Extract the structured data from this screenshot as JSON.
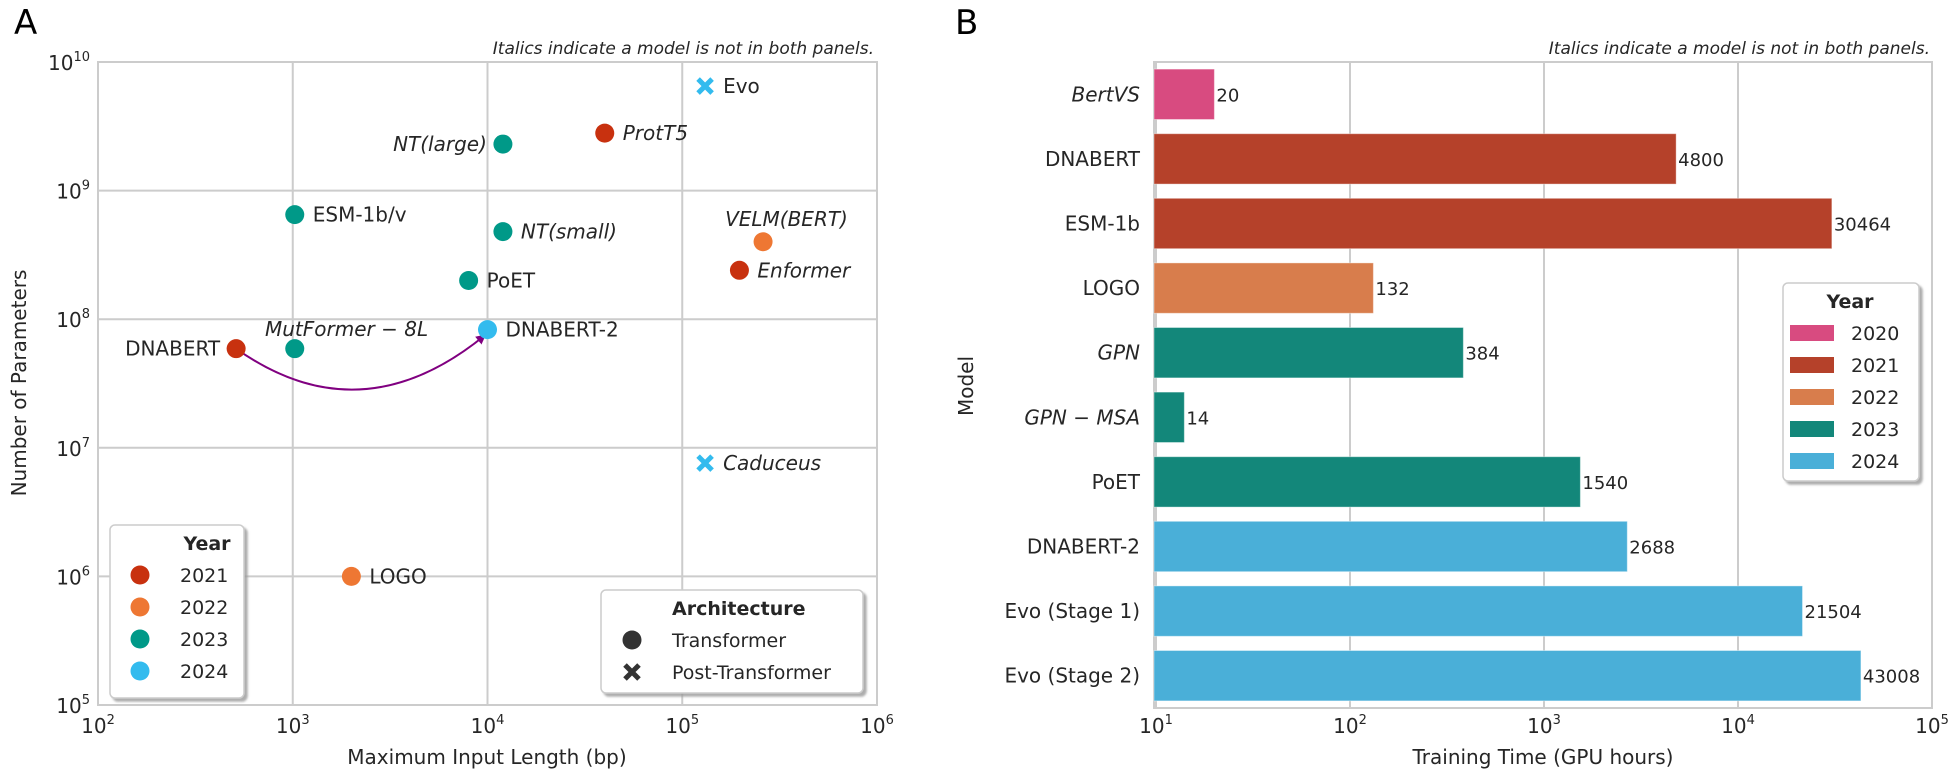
{
  "chart_data": [
    {
      "panel": "A",
      "type": "scatter",
      "note": "Italics indicate a model is not in both panels.",
      "xlabel": "Maximum Input Length (bp)",
      "ylabel": "Number of Parameters",
      "xscale": "log",
      "yscale": "log",
      "xlim": [
        100,
        1000000
      ],
      "ylim": [
        100000,
        10000000000
      ],
      "xticks": [
        {
          "base": "10",
          "exp": "2"
        },
        {
          "base": "10",
          "exp": "3"
        },
        {
          "base": "10",
          "exp": "4"
        },
        {
          "base": "10",
          "exp": "5"
        },
        {
          "base": "10",
          "exp": "6"
        }
      ],
      "yticks": [
        {
          "base": "10",
          "exp": "5"
        },
        {
          "base": "10",
          "exp": "6"
        },
        {
          "base": "10",
          "exp": "7"
        },
        {
          "base": "10",
          "exp": "8"
        },
        {
          "base": "10",
          "exp": "9"
        },
        {
          "base": "10",
          "exp": "10"
        }
      ],
      "grid": true,
      "points": [
        {
          "label": "Evo",
          "x": 131000,
          "y": 6500000000,
          "year": "2024",
          "architecture": "Post-Transformer",
          "italic": false,
          "label_pos": "right"
        },
        {
          "label": "ProtT5",
          "x": 40000,
          "y": 2800000000,
          "year": "2021",
          "architecture": "Transformer",
          "italic": true,
          "label_pos": "right"
        },
        {
          "label": "NT(large)",
          "x": 12000,
          "y": 2300000000,
          "year": "2023",
          "architecture": "Transformer",
          "italic": true,
          "label_pos": "left"
        },
        {
          "label": "ESM-1b/v",
          "x": 1024,
          "y": 650000000,
          "year": "2023",
          "architecture": "Transformer",
          "italic": false,
          "label_pos": "right"
        },
        {
          "label": "NT(small)",
          "x": 12000,
          "y": 480000000,
          "year": "2023",
          "architecture": "Transformer",
          "italic": true,
          "label_pos": "right"
        },
        {
          "label": "VELM(BERT)",
          "x": 260000,
          "y": 400000000,
          "year": "2022",
          "architecture": "Transformer",
          "italic": true,
          "label_pos": "above"
        },
        {
          "label": "Enformer",
          "x": 196608,
          "y": 240000000,
          "year": "2021",
          "architecture": "Transformer",
          "italic": true,
          "label_pos": "right"
        },
        {
          "label": "PoET",
          "x": 8000,
          "y": 200000000,
          "year": "2023",
          "architecture": "Transformer",
          "italic": false,
          "label_pos": "right"
        },
        {
          "label": "DNABERT-2",
          "x": 10000,
          "y": 83000000,
          "year": "2024",
          "architecture": "Transformer",
          "italic": false,
          "label_pos": "right"
        },
        {
          "label": "DNABERT",
          "x": 512,
          "y": 59000000,
          "year": "2021",
          "architecture": "Transformer",
          "italic": false,
          "label_pos": "left"
        },
        {
          "label": "MutFormer − 8L",
          "x": 1024,
          "y": 59000000,
          "year": "2023",
          "architecture": "Transformer",
          "italic": true,
          "label_pos": "above-right"
        },
        {
          "label": "Caduceus",
          "x": 131000,
          "y": 7600000,
          "year": "2024",
          "architecture": "Post-Transformer",
          "italic": true,
          "label_pos": "right"
        },
        {
          "label": "LOGO",
          "x": 2000,
          "y": 1000000,
          "year": "2022",
          "architecture": "Transformer",
          "italic": false,
          "label_pos": "right"
        }
      ],
      "annotations": [
        {
          "type": "curved-arrow",
          "from": "DNABERT",
          "to": "DNABERT-2",
          "color": "#800080"
        }
      ],
      "legends": [
        {
          "title": "Year",
          "placement": "lower-left",
          "items": [
            {
              "label": "2021",
              "color": "#c8310f"
            },
            {
              "label": "2022",
              "color": "#ee7733"
            },
            {
              "label": "2023",
              "color": "#009988"
            },
            {
              "label": "2024",
              "color": "#33bbee"
            }
          ]
        },
        {
          "title": "Architecture",
          "placement": "lower-right",
          "items": [
            {
              "label": "Transformer",
              "marker": "circle",
              "color": "#333333"
            },
            {
              "label": "Post-Transformer",
              "marker": "x",
              "color": "#333333"
            }
          ]
        }
      ]
    },
    {
      "panel": "B",
      "type": "bar",
      "orientation": "horizontal",
      "note": "Italics indicate a model is not in both panels.",
      "xlabel": "Training Time (GPU hours)",
      "ylabel": "Model",
      "xscale": "log",
      "xlim": [
        10,
        100000
      ],
      "xticks": [
        {
          "base": "10",
          "exp": "1"
        },
        {
          "base": "10",
          "exp": "2"
        },
        {
          "base": "10",
          "exp": "3"
        },
        {
          "base": "10",
          "exp": "4"
        },
        {
          "base": "10",
          "exp": "5"
        }
      ],
      "grid": true,
      "categories": [
        "BertVS",
        "DNABERT",
        "ESM-1b",
        "LOGO",
        "GPN",
        "GPN − MSA",
        "PoET",
        "DNABERT-2",
        "Evo (Stage 1)",
        "Evo (Stage 2)"
      ],
      "italic": [
        true,
        false,
        false,
        false,
        true,
        true,
        false,
        false,
        false,
        false
      ],
      "values": [
        20,
        4800,
        30464,
        132,
        384,
        14,
        1540,
        2688,
        21504,
        43008
      ],
      "years": [
        "2020",
        "2021",
        "2021",
        "2022",
        "2023",
        "2023",
        "2023",
        "2024",
        "2024",
        "2024"
      ],
      "legend": {
        "title": "Year",
        "placement": "center-right",
        "items": [
          {
            "label": "2020",
            "color": "#d84b80"
          },
          {
            "label": "2021",
            "color": "#b5412a"
          },
          {
            "label": "2022",
            "color": "#d87d4c"
          },
          {
            "label": "2023",
            "color": "#13877a"
          },
          {
            "label": "2024",
            "color": "#4aafd8"
          }
        ]
      }
    }
  ],
  "panels": {
    "a_letter": "A",
    "b_letter": "B"
  }
}
